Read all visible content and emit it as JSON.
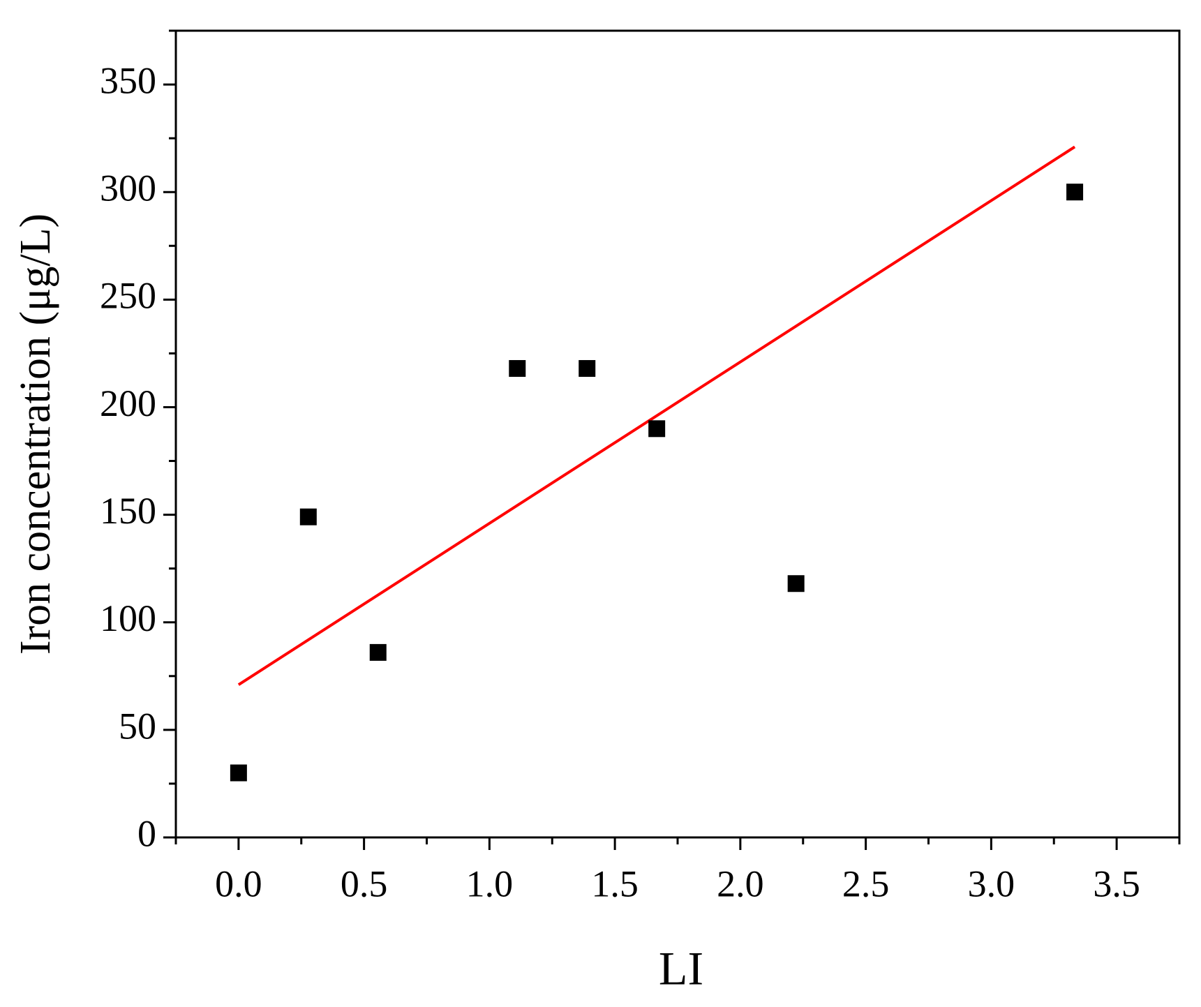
{
  "chart_data": {
    "type": "scatter",
    "x_label": "LI",
    "y_label": "Iron concentration (μg/L)",
    "series": [
      {
        "color": "#000000",
        "marker": "square",
        "x": [
          0,
          0.278,
          0.556,
          1.111,
          1.389,
          1.667,
          2.222,
          3.333
        ],
        "values": [
          30,
          149,
          86,
          218,
          218,
          190,
          118,
          300
        ]
      }
    ],
    "fit_line": {
      "color": "#ff0000",
      "x": [
        0,
        3.333
      ],
      "values": [
        71,
        321
      ]
    },
    "xlim": [
      -0.25,
      3.75
    ],
    "xticks": [
      {
        "value": 0,
        "label": "0.0"
      },
      0.5,
      {
        "value": 1,
        "label": "1.0"
      },
      1.5,
      {
        "value": 2,
        "label": "2.0"
      },
      2.5,
      {
        "value": 3,
        "label": "3.0"
      },
      3.5
    ],
    "ylim": [
      0,
      375
    ],
    "yticks": [
      0,
      50,
      100,
      150,
      200,
      250,
      300,
      350
    ]
  }
}
